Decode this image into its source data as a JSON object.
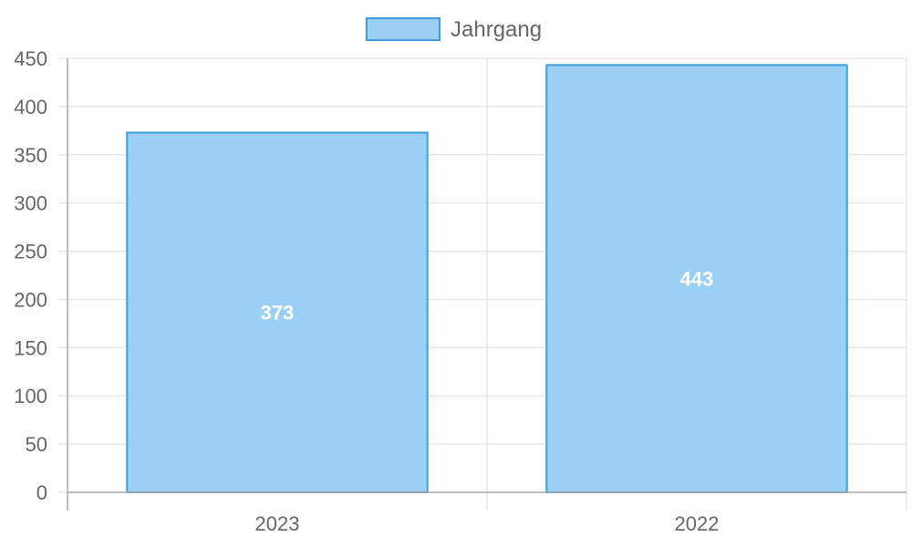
{
  "chart_data": {
    "type": "bar",
    "categories": [
      "2023",
      "2022"
    ],
    "series": [
      {
        "name": "Jahrgang",
        "values": [
          373,
          443
        ]
      }
    ],
    "ylim": [
      0,
      450
    ],
    "y_ticks": [
      0,
      50,
      100,
      150,
      200,
      250,
      300,
      350,
      400,
      450
    ],
    "legend_position": "top-center",
    "grid": true,
    "data_labels": [
      "373",
      "443"
    ],
    "colors": {
      "bar_fill": "#9bcff3",
      "bar_stroke": "#3c9fdb",
      "grid": "#e3e3e3",
      "axis": "#a9a9a9",
      "text": "#666666",
      "data_label": "#ffffff"
    }
  }
}
